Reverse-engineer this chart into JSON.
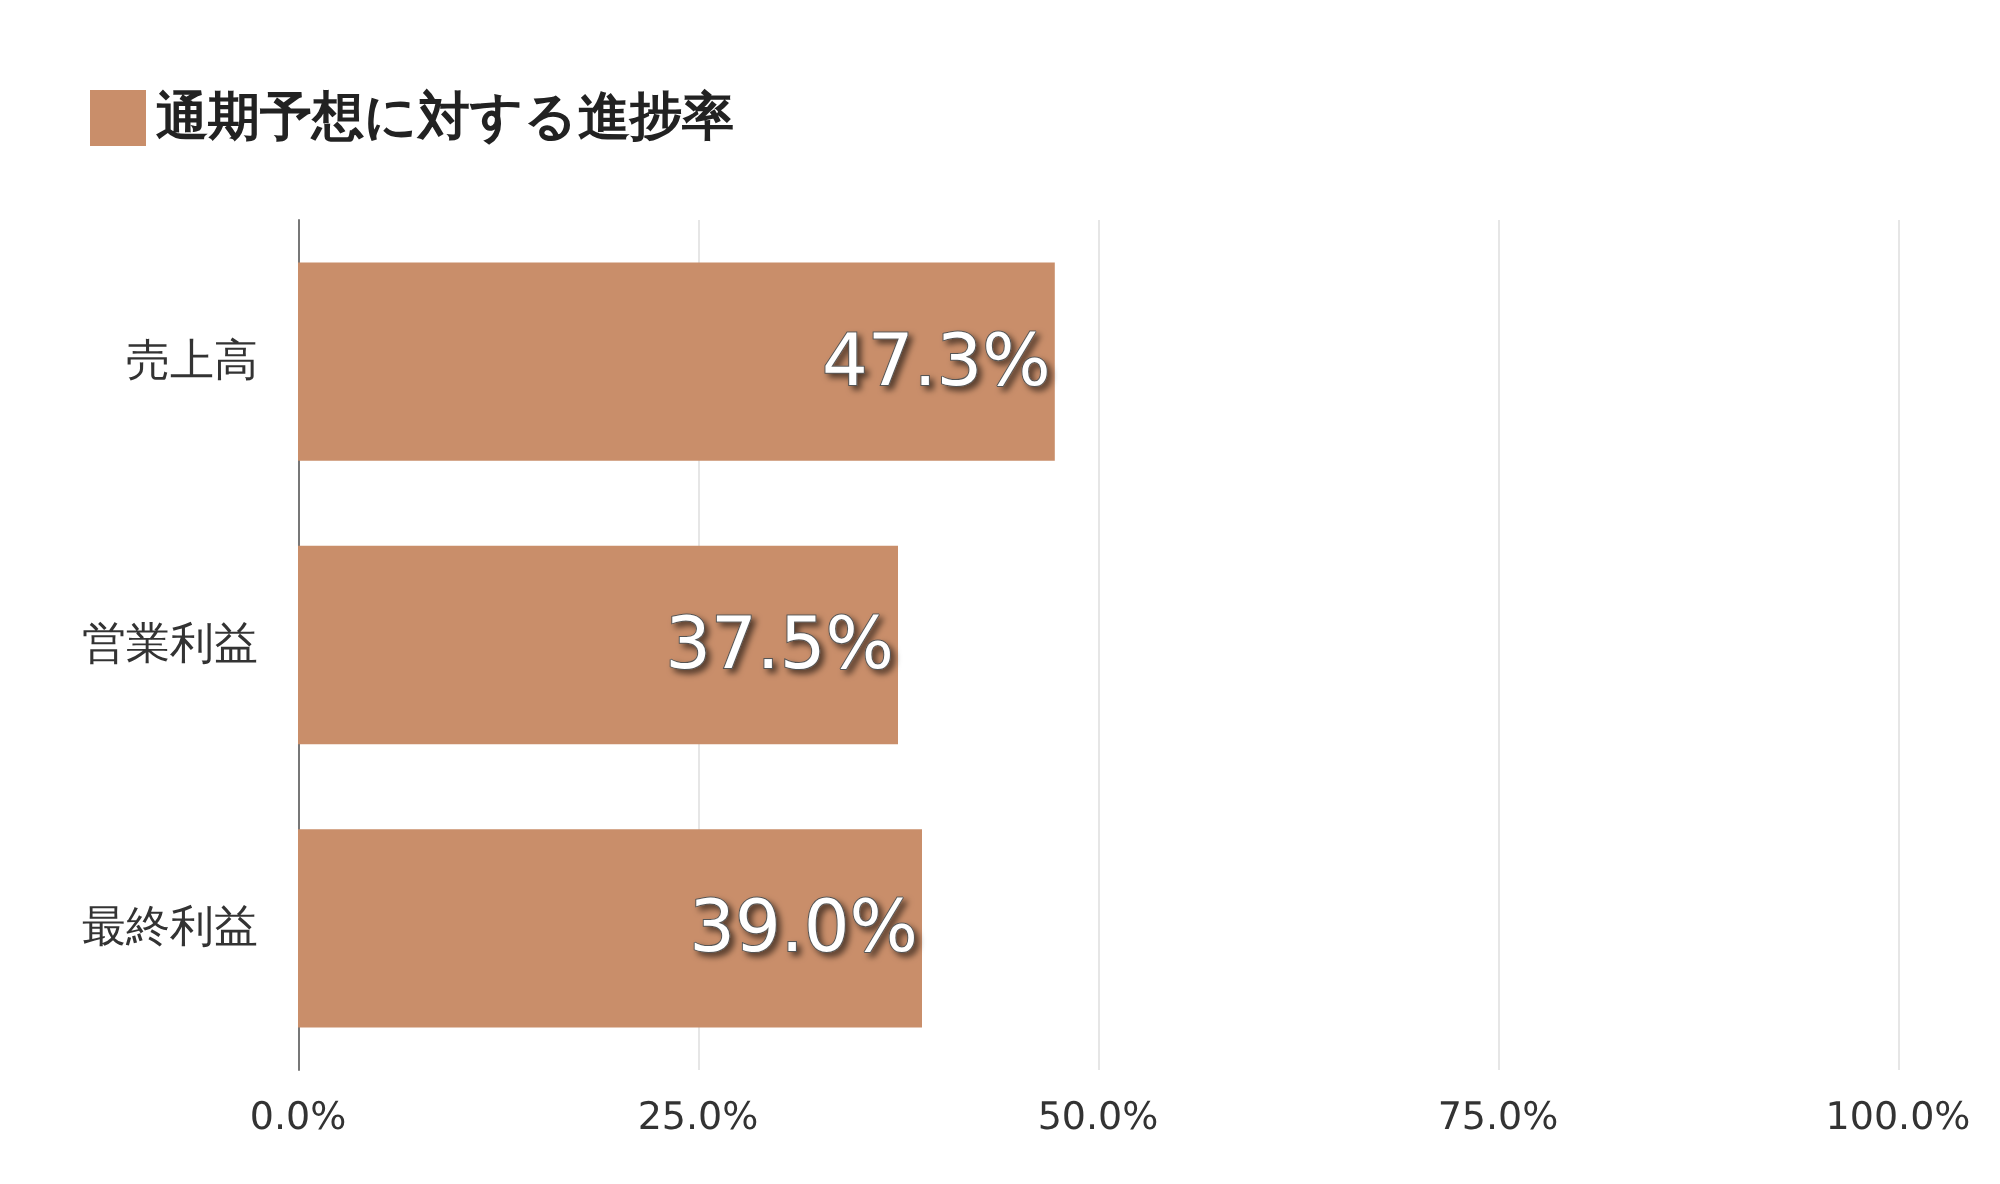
{
  "chart_data": {
    "type": "bar",
    "orientation": "horizontal",
    "categories": [
      "売上高",
      "営業利益",
      "最終利益"
    ],
    "series": [
      {
        "name": "通期予想に対する進捗率",
        "color": "#c98e6a",
        "values": [
          47.3,
          37.5,
          39.0
        ],
        "value_labels": [
          "47.3%",
          "37.5%",
          "39.0%"
        ]
      }
    ],
    "xlim": [
      0,
      100
    ],
    "xticks": [
      {
        "value": 0,
        "label": "0.0%"
      },
      {
        "value": 25,
        "label": "25.0%"
      },
      {
        "value": 50,
        "label": "50.0%"
      },
      {
        "value": 75,
        "label": "75.0%"
      },
      {
        "value": 100,
        "label": "100.0%"
      }
    ],
    "grid": "x",
    "legend": "top left"
  }
}
